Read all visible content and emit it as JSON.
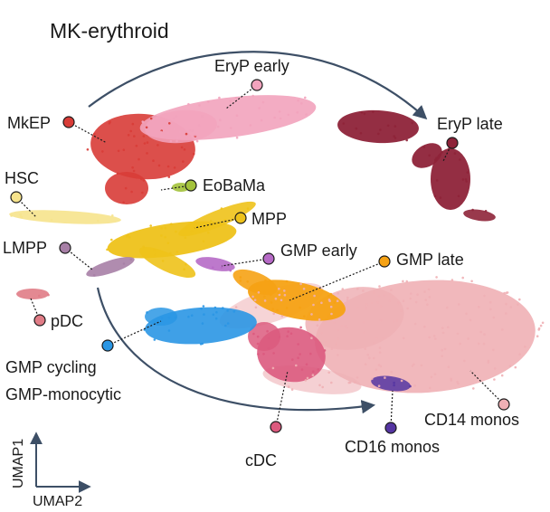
{
  "title": "MK-erythroid",
  "trajectory_label": "GMP-monocytic",
  "axes": {
    "x_label": "UMAP2",
    "y_label": "UMAP1",
    "arrow_color": "#3d4f66"
  },
  "populations": [
    {
      "id": "eryp-early",
      "label": "EryP early",
      "color": "#f2a3bd"
    },
    {
      "id": "eryp-late",
      "label": "EryP late",
      "color": "#8e2339"
    },
    {
      "id": "mkep",
      "label": "MkEP",
      "color": "#d83c37"
    },
    {
      "id": "hsc",
      "label": "HSC",
      "color": "#f6e38c"
    },
    {
      "id": "eobama",
      "label": "EoBaMa",
      "color": "#a3c23b"
    },
    {
      "id": "mpp",
      "label": "MPP",
      "color": "#eec21a"
    },
    {
      "id": "lmpp",
      "label": "LMPP",
      "color": "#a77fa6"
    },
    {
      "id": "gmp-early",
      "label": "GMP early",
      "color": "#b66ac6"
    },
    {
      "id": "gmp-late",
      "label": "GMP late",
      "color": "#f6a214"
    },
    {
      "id": "pdc",
      "label": "pDC",
      "color": "#e07c86"
    },
    {
      "id": "gmp-cycling",
      "label": "GMP cycling",
      "color": "#2a96e4"
    },
    {
      "id": "cdc",
      "label": "cDC",
      "color": "#dc5a7e"
    },
    {
      "id": "cd16-monos",
      "label": "CD16 monos",
      "color": "#5535a2"
    },
    {
      "id": "cd14-monos",
      "label": "CD14 monos",
      "color": "#efb0b5"
    }
  ]
}
